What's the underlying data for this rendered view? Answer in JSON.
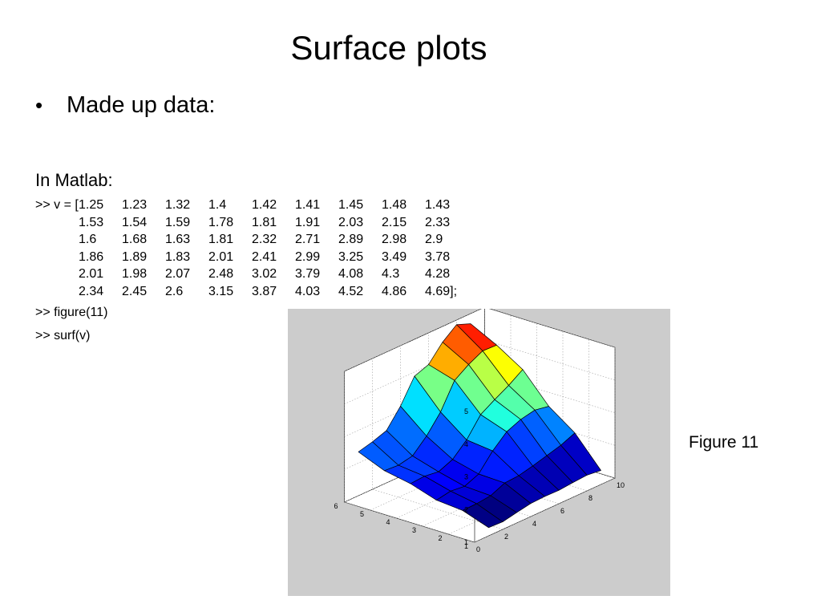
{
  "slide": {
    "title": "Surface plots",
    "bullet": "Made up data:",
    "section_heading": "In Matlab:",
    "code_prefix": ">> v = [",
    "code_suffix": "];",
    "commands": [
      ">> figure(11)",
      ">> surf(v)"
    ],
    "figure_caption": "Figure 11"
  },
  "chart_data": {
    "type": "surface",
    "command": "surf(v)",
    "colormap": "jet",
    "background_color": "#cccccc",
    "grid": true,
    "x_ticks": [
      "0",
      "2",
      "4",
      "6",
      "8",
      "10"
    ],
    "y_ticks": [
      "1",
      "2",
      "3",
      "4",
      "5",
      "6"
    ],
    "z_ticks": [
      "1",
      "2",
      "3",
      "4",
      "5"
    ],
    "xlim": [
      0,
      10
    ],
    "ylim": [
      1,
      6
    ],
    "zlim": [
      1,
      5
    ],
    "matrix": [
      [
        "1.25",
        "1.23",
        "1.32",
        "1.4",
        "1.42",
        "1.41",
        "1.45",
        "1.48",
        "1.43"
      ],
      [
        "1.53",
        "1.54",
        "1.59",
        "1.78",
        "1.81",
        "1.91",
        "2.03",
        "2.15",
        "2.33"
      ],
      [
        "1.6",
        "1.68",
        "1.63",
        "1.81",
        "2.32",
        "2.71",
        "2.89",
        "2.98",
        "2.9"
      ],
      [
        "1.86",
        "1.89",
        "1.83",
        "2.01",
        "2.41",
        "2.99",
        "3.25",
        "3.49",
        "3.78"
      ],
      [
        "2.01",
        "1.98",
        "2.07",
        "2.48",
        "3.02",
        "3.79",
        "4.08",
        "4.3",
        "4.28"
      ],
      [
        "2.34",
        "2.45",
        "2.6",
        "3.15",
        "3.87",
        "4.03",
        "4.52",
        "4.86",
        "4.69"
      ]
    ]
  }
}
